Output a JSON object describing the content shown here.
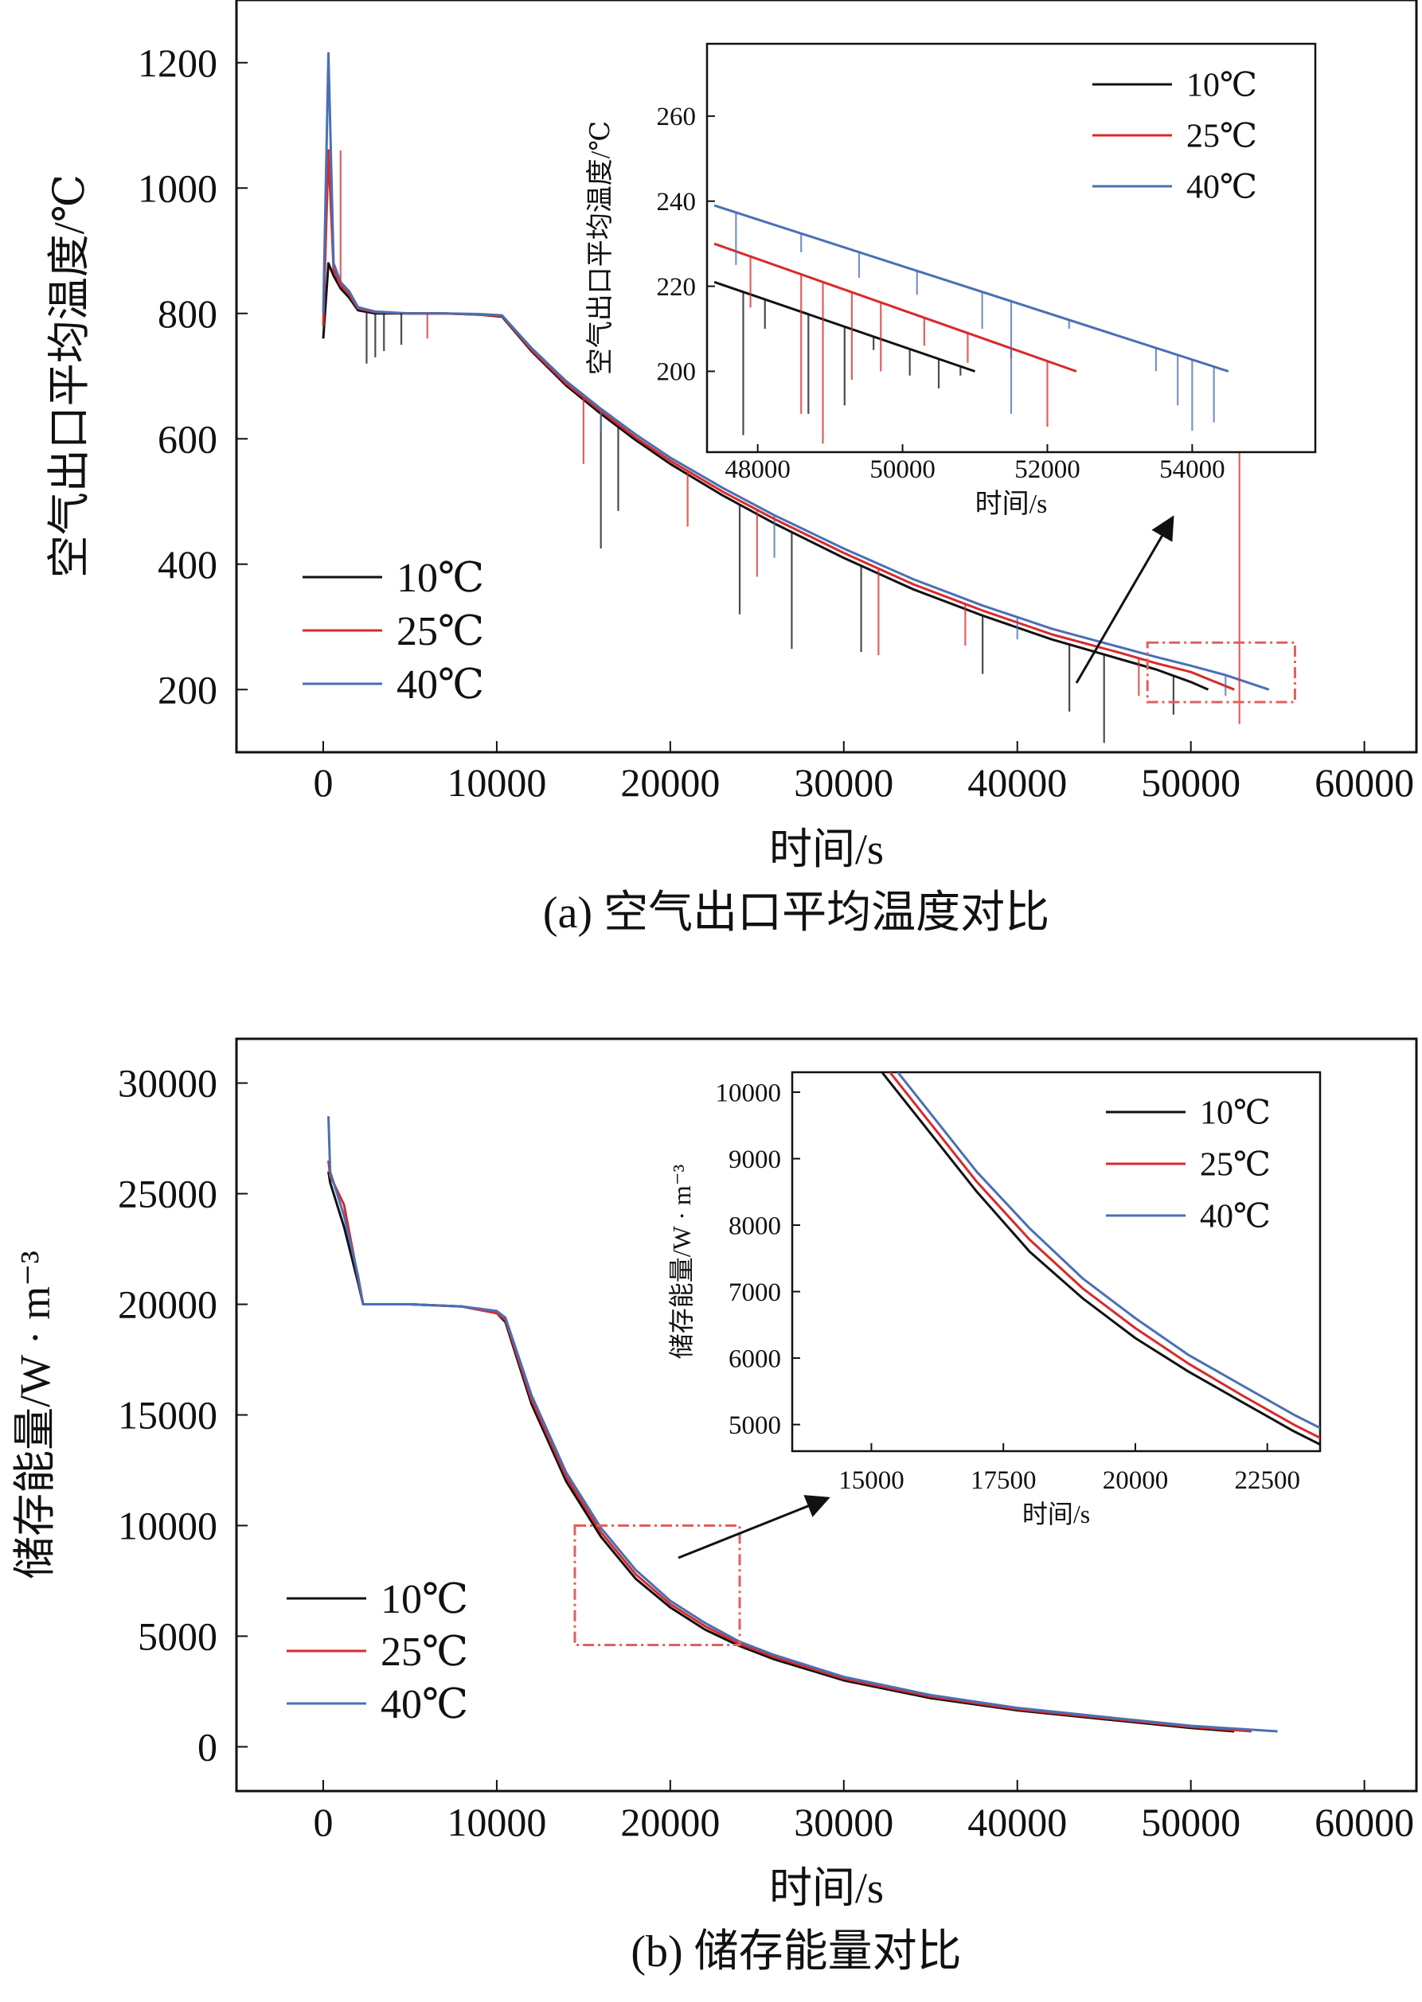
{
  "chart_data": [
    {
      "type": "line",
      "caption": "(a) 空气出口平均温度对比",
      "xlabel": "时间/s",
      "ylabel": "空气出口平均温度/℃",
      "xlim": [
        -5000,
        63000
      ],
      "ylim": [
        100,
        1300
      ],
      "xticks": [
        0,
        10000,
        20000,
        30000,
        40000,
        50000,
        60000
      ],
      "yticks": [
        200,
        400,
        600,
        800,
        1000,
        1200
      ],
      "legend_position": "bottom-left",
      "series": [
        {
          "name": "10℃",
          "color": "#111111",
          "x": [
            0,
            300,
            600,
            1000,
            1500,
            2000,
            3000,
            5000,
            7000,
            9000,
            10300,
            12000,
            14000,
            16000,
            18000,
            20000,
            23000,
            26000,
            30000,
            34000,
            38000,
            42000,
            46000,
            48000,
            50000,
            51000
          ],
          "y": [
            760,
            880,
            860,
            840,
            825,
            805,
            800,
            800,
            800,
            798,
            795,
            740,
            685,
            640,
            598,
            560,
            510,
            465,
            410,
            360,
            318,
            280,
            248,
            232,
            212,
            200
          ]
        },
        {
          "name": "25℃",
          "color": "#d92a2a",
          "x": [
            0,
            300,
            600,
            1000,
            1500,
            2000,
            3000,
            5000,
            7000,
            9000,
            10300,
            12000,
            14000,
            16000,
            18000,
            20000,
            23000,
            26000,
            30000,
            34000,
            38000,
            42000,
            46000,
            48000,
            50000,
            52500
          ],
          "y": [
            780,
            1060,
            870,
            845,
            830,
            808,
            802,
            800,
            800,
            798,
            796,
            742,
            688,
            644,
            602,
            565,
            516,
            472,
            418,
            368,
            326,
            288,
            258,
            242,
            228,
            200
          ]
        },
        {
          "name": "40℃",
          "color": "#4a6fb5",
          "x": [
            0,
            300,
            600,
            1000,
            1500,
            2000,
            3000,
            5000,
            7000,
            9000,
            10300,
            12000,
            14000,
            16000,
            18000,
            20000,
            23000,
            26000,
            30000,
            34000,
            38000,
            42000,
            46000,
            48000,
            50000,
            52000,
            54500
          ],
          "y": [
            800,
            1215,
            880,
            850,
            835,
            810,
            803,
            800,
            800,
            799,
            797,
            745,
            692,
            648,
            607,
            570,
            522,
            478,
            425,
            376,
            334,
            297,
            267,
            252,
            238,
            223,
            200
          ]
        }
      ],
      "spikes": [
        {
          "series": "10℃",
          "x": [
            2500,
            3000,
            3500,
            4500,
            16000,
            17000,
            24000,
            27000,
            31000,
            38000,
            43000,
            45000,
            49000
          ],
          "y": [
            720,
            730,
            740,
            750,
            425,
            485,
            320,
            265,
            260,
            225,
            165,
            115,
            160
          ]
        },
        {
          "series": "25℃",
          "x": [
            1000,
            6000,
            15000,
            21000,
            25000,
            32000,
            37000,
            47000,
            52800
          ],
          "y": [
            1060,
            760,
            560,
            460,
            380,
            255,
            270,
            190,
            145
          ]
        },
        {
          "series": "40℃",
          "x": [
            300,
            16000,
            26000,
            40000,
            52000
          ],
          "y": [
            1215,
            610,
            410,
            280,
            190
          ]
        }
      ],
      "zoom_box": {
        "x": [
          47500,
          56000
        ],
        "y": [
          180,
          275
        ]
      },
      "inset": {
        "xlabel": "时间/s",
        "ylabel": "空气出口平均温度/℃",
        "xlim": [
          47300,
          55700
        ],
        "ylim": [
          181,
          277
        ],
        "xticks": [
          48000,
          50000,
          52000,
          54000
        ],
        "yticks": [
          200,
          220,
          240,
          260
        ],
        "legend_position": "top-right",
        "series": [
          {
            "name": "10℃",
            "color": "#111111",
            "x": [
              47400,
              51000
            ],
            "y": [
              221,
              200
            ]
          },
          {
            "name": "25℃",
            "color": "#d92a2a",
            "x": [
              47400,
              52400
            ],
            "y": [
              230,
              200
            ]
          },
          {
            "name": "40℃",
            "color": "#4a6fb5",
            "x": [
              47400,
              54500
            ],
            "y": [
              239,
              200
            ]
          }
        ],
        "spikes": [
          {
            "series": "10℃",
            "x": [
              47800,
              48100,
              48700,
              49200,
              49600,
              50100,
              50500,
              50800
            ],
            "y": [
              185,
              210,
              190,
              192,
              205,
              199,
              196,
              199
            ]
          },
          {
            "series": "25℃",
            "x": [
              47900,
              48600,
              48900,
              49300,
              49700,
              50300,
              50900,
              51500,
              52000
            ],
            "y": [
              215,
              190,
              183,
              198,
              200,
              206,
              202,
              203,
              187
            ]
          },
          {
            "series": "40℃",
            "x": [
              47700,
              48600,
              49400,
              50200,
              51100,
              51500,
              52300,
              53500,
              53800,
              54000,
              54300
            ],
            "y": [
              225,
              228,
              222,
              218,
              210,
              190,
              210,
              200,
              192,
              186,
              188
            ]
          }
        ]
      }
    },
    {
      "type": "line",
      "caption": "(b) 储存能量对比",
      "xlabel": "时间/s",
      "ylabel": "储存能量/W · m⁻³",
      "xlim": [
        -5000,
        63000
      ],
      "ylim": [
        -2000,
        32000
      ],
      "xticks": [
        0,
        10000,
        20000,
        30000,
        40000,
        50000,
        60000
      ],
      "yticks": [
        0,
        5000,
        10000,
        15000,
        20000,
        25000,
        30000
      ],
      "legend_position": "bottom-left",
      "series": [
        {
          "name": "10℃",
          "color": "#111111",
          "x": [
            300,
            400,
            1200,
            2000,
            2300,
            5000,
            8000,
            10000,
            10500,
            12000,
            14000,
            16000,
            18000,
            20000,
            22000,
            24000,
            26000,
            30000,
            35000,
            40000,
            45000,
            50000,
            52500
          ],
          "y": [
            26000,
            25500,
            23500,
            21000,
            20000,
            20000,
            19900,
            19600,
            19200,
            15500,
            12000,
            9500,
            7600,
            6300,
            5300,
            4550,
            3950,
            3000,
            2200,
            1650,
            1250,
            850,
            700
          ]
        },
        {
          "name": "25℃",
          "color": "#d92a2a",
          "x": [
            300,
            400,
            1200,
            2000,
            2300,
            5000,
            8000,
            10000,
            10500,
            12000,
            14000,
            16000,
            18000,
            20000,
            22000,
            24000,
            26000,
            30000,
            35000,
            40000,
            45000,
            50000,
            53500
          ],
          "y": [
            26500,
            25800,
            24500,
            21200,
            20000,
            20000,
            19900,
            19600,
            19300,
            15700,
            12200,
            9700,
            7800,
            6450,
            5450,
            4650,
            4050,
            3080,
            2270,
            1700,
            1300,
            900,
            700
          ]
        },
        {
          "name": "40℃",
          "color": "#4a6fb5",
          "x": [
            300,
            400,
            1200,
            2000,
            2300,
            5000,
            8000,
            10000,
            10500,
            12000,
            14000,
            16000,
            18000,
            20000,
            22000,
            24000,
            26000,
            30000,
            35000,
            40000,
            45000,
            50000,
            55000
          ],
          "y": [
            28500,
            26000,
            24000,
            21300,
            20000,
            20000,
            19900,
            19700,
            19400,
            15900,
            12400,
            9900,
            8000,
            6600,
            5600,
            4750,
            4150,
            3160,
            2340,
            1760,
            1350,
            950,
            700
          ]
        }
      ],
      "zoom_box": {
        "x": [
          14500,
          24000
        ],
        "y": [
          4600,
          10000
        ]
      },
      "inset": {
        "xlabel": "时间/s",
        "ylabel": "储存能量/W · m⁻³",
        "xlim": [
          13500,
          23500
        ],
        "ylim": [
          4600,
          10300
        ],
        "xticks": [
          15000,
          17500,
          20000,
          22500
        ],
        "yticks": [
          5000,
          6000,
          7000,
          8000,
          9000,
          10000
        ],
        "legend_position": "top-right",
        "series": [
          {
            "name": "10℃",
            "color": "#111111",
            "x": [
              15200,
              16000,
              17000,
              18000,
              19000,
              20000,
              21000,
              22000,
              23000,
              23500
            ],
            "y": [
              10300,
              9500,
              8500,
              7600,
              6900,
              6300,
              5800,
              5350,
              4900,
              4700
            ]
          },
          {
            "name": "25℃",
            "color": "#d92a2a",
            "x": [
              15350,
              16000,
              17000,
              18000,
              19000,
              20000,
              21000,
              22000,
              23000,
              23500
            ],
            "y": [
              10300,
              9650,
              8650,
              7780,
              7050,
              6450,
              5920,
              5450,
              5000,
              4800
            ]
          },
          {
            "name": "40℃",
            "color": "#4a6fb5",
            "x": [
              15500,
              16000,
              17000,
              18000,
              19000,
              20000,
              21000,
              22000,
              23000,
              23500
            ],
            "y": [
              10300,
              9800,
              8800,
              7950,
              7200,
              6600,
              6050,
              5600,
              5150,
              4950
            ]
          }
        ]
      }
    }
  ]
}
